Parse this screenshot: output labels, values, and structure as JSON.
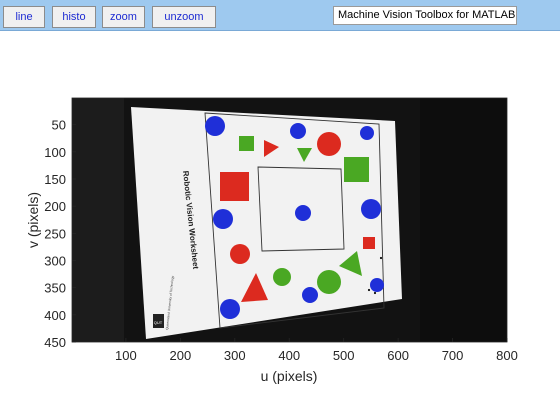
{
  "toolbar": {
    "buttons": [
      "line",
      "histo",
      "zoom",
      "unzoom"
    ],
    "title_text": "Machine Vision Toolbox for MATLAB"
  },
  "image": {
    "worksheet_title": "Robotic Vision Worksheet",
    "logo_text": "QUT",
    "university_text": "Queensland University of Technology"
  },
  "axes": {
    "xlabel": "u (pixels)",
    "ylabel": "v (pixels)",
    "xlim": [
      1,
      800
    ],
    "ylim": [
      1,
      450
    ],
    "xticks": [
      100,
      200,
      300,
      400,
      500,
      600,
      700,
      800
    ],
    "yticks": [
      50,
      100,
      150,
      200,
      250,
      300,
      350,
      400,
      450
    ]
  },
  "colors": {
    "toolbar_bg": "#9ec9ef",
    "button_text": "#1d2bd2",
    "blue": "#1f2fd8",
    "red": "#dc2a1f",
    "green": "#4aa823"
  }
}
